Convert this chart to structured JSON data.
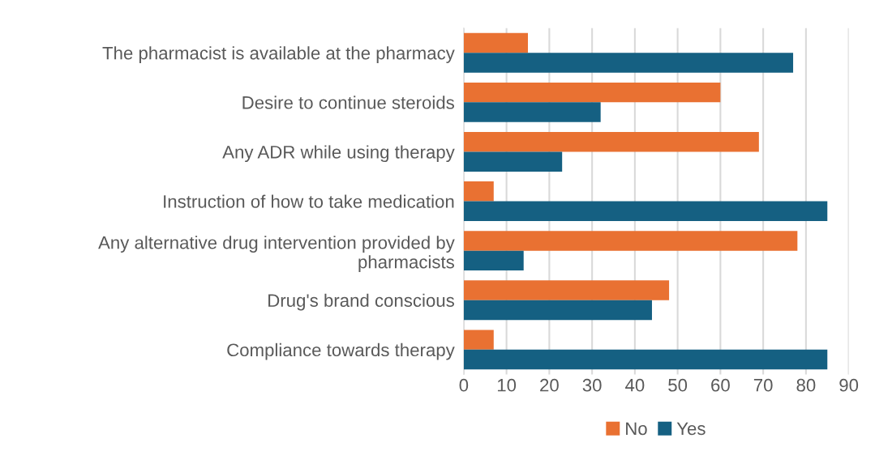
{
  "chart_data": {
    "type": "bar",
    "orientation": "horizontal",
    "categories": [
      "The pharmacist is available at the pharmacy",
      "Desire to continue steroids",
      "Any ADR while using therapy",
      "Instruction of how to take medication",
      "Any alternative drug intervention provided by pharmacists",
      "Drug's brand conscious",
      "Compliance towards therapy"
    ],
    "series": [
      {
        "name": "No",
        "color": "#e97132",
        "values": [
          15,
          60,
          69,
          7,
          78,
          48,
          7
        ]
      },
      {
        "name": "Yes",
        "color": "#156082",
        "values": [
          77,
          32,
          23,
          85,
          14,
          44,
          85
        ]
      }
    ],
    "xlim": [
      0,
      90
    ],
    "xticks": [
      0,
      10,
      20,
      30,
      40,
      50,
      60,
      70,
      80,
      90
    ],
    "grid": "x",
    "legend": "bottom"
  }
}
